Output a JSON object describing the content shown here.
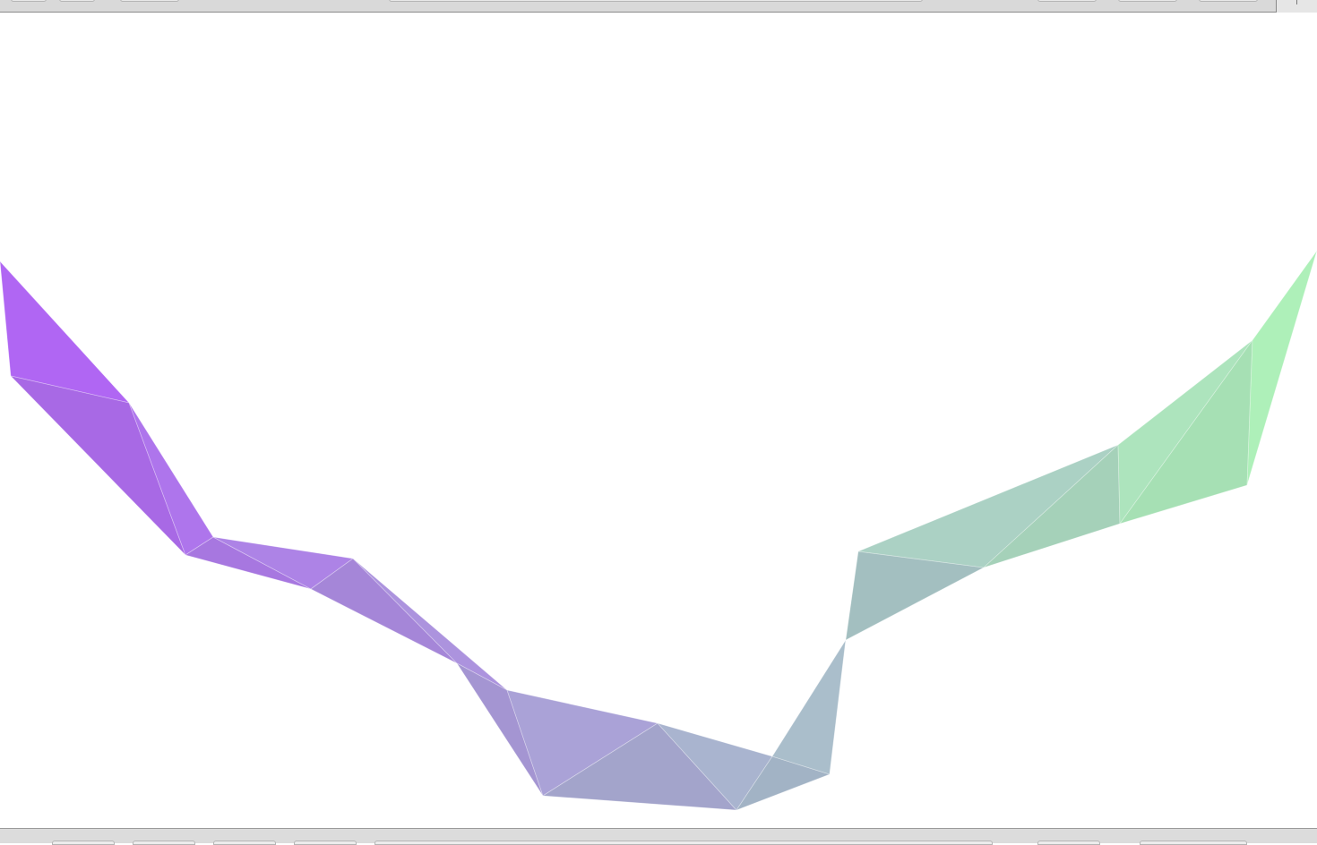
{
  "shape": {
    "name": "polygon-ribbon",
    "color_start": "#b061f5",
    "color_mid": "#a9b4cf",
    "color_end": "#aef5b7",
    "edge_color": "#ffffff"
  }
}
